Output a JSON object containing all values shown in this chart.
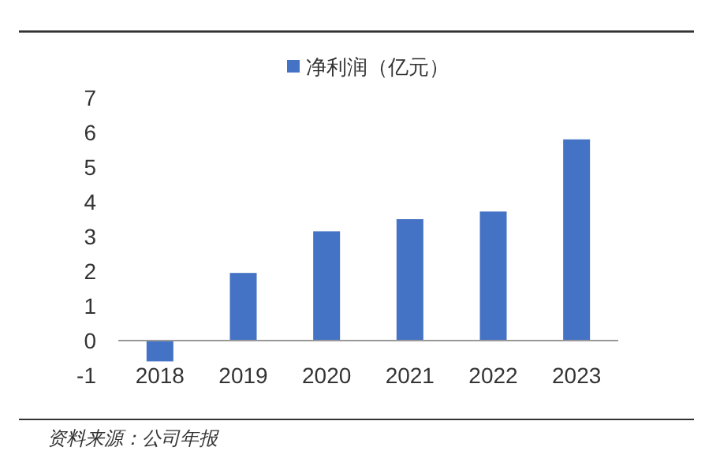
{
  "chart_data": {
    "type": "bar",
    "categories": [
      "2018",
      "2019",
      "2020",
      "2021",
      "2022",
      "2023"
    ],
    "series": [
      {
        "name": "净利润（亿元）",
        "color": "#4472c4",
        "values": [
          -0.6,
          1.95,
          3.15,
          3.5,
          3.72,
          5.8
        ]
      }
    ],
    "ylim": [
      -1,
      7
    ],
    "yticks": [
      -1,
      0,
      1,
      2,
      3,
      4,
      5,
      6,
      7
    ],
    "grid": false,
    "legend": "top",
    "annotations": [
      "资料来源：公司年报"
    ]
  }
}
